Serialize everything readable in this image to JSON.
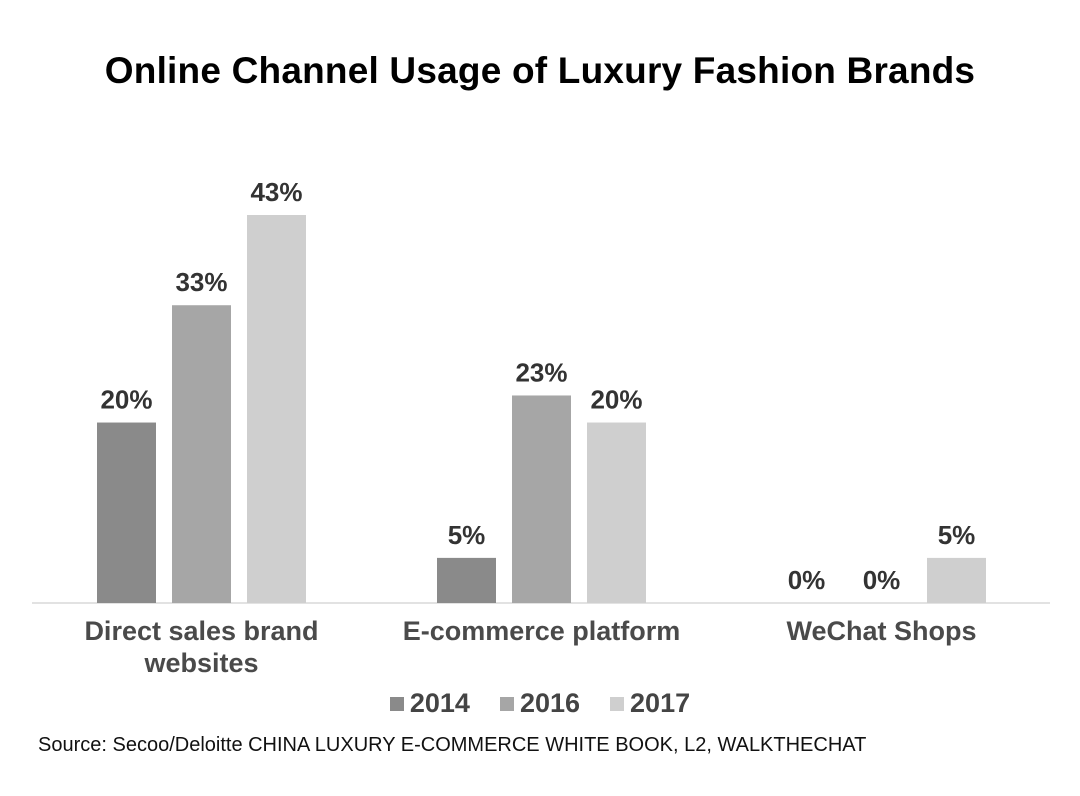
{
  "chart_data": {
    "type": "bar",
    "title": "Online Channel Usage of Luxury Fashion Brands",
    "categories": [
      [
        "Direct sales brand",
        "websites"
      ],
      [
        "E-commerce platform"
      ],
      [
        "WeChat Shops"
      ]
    ],
    "series": [
      {
        "name": "2014",
        "color": "#8a8a8a",
        "values": [
          20,
          5,
          0
        ],
        "labels": [
          "20%",
          "5%",
          "0%"
        ]
      },
      {
        "name": "2016",
        "color": "#a6a6a6",
        "values": [
          33,
          23,
          0
        ],
        "labels": [
          "33%",
          "23%",
          "0%"
        ]
      },
      {
        "name": "2017",
        "color": "#cfcfcf",
        "values": [
          43,
          20,
          5
        ],
        "labels": [
          "43%",
          "20%",
          "5%"
        ]
      }
    ],
    "ylim": [
      0,
      45
    ],
    "grid": false,
    "legend_position": "bottom",
    "xlabel": "",
    "ylabel": ""
  },
  "source": "Source: Secoo/Deloitte CHINA LUXURY E-COMMERCE WHITE BOOK, L2, WALKTHECHAT"
}
